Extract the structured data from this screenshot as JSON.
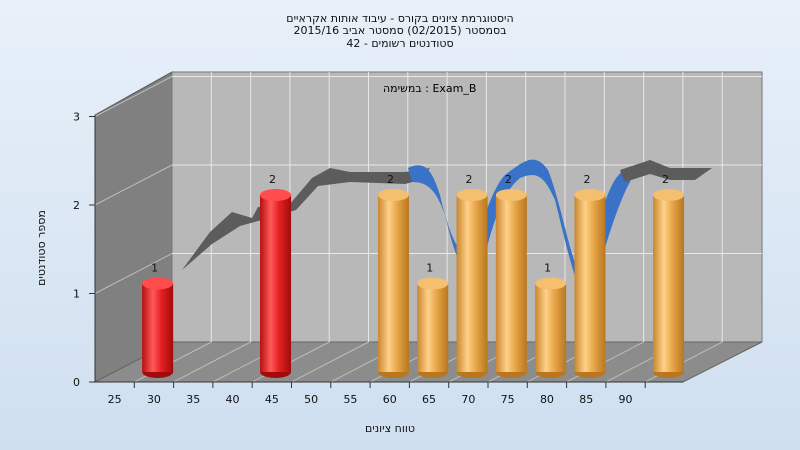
{
  "title_lines": [
    "היסטוגרמת ציונים בקורס - עיבוד אותות אקראיים",
    "בסמסטר  (02/2015)  סמסטר אביב 2015/16",
    "סטודנטים רשומים - 42"
  ],
  "chart_data": {
    "type": "bar",
    "title": "היסטוגרמת ציונים בקורס - עיבוד אותות אקראיים",
    "subtitle": "במשימה : Exam_B",
    "xlabel": "טווח ציונים",
    "ylabel": "מספר סטודנטים",
    "categories": [
      "25",
      "30",
      "35",
      "40",
      "45",
      "50",
      "55",
      "60",
      "65",
      "70",
      "75",
      "80",
      "85",
      "90"
    ],
    "values": [
      1,
      0,
      0,
      2,
      0,
      0,
      2,
      1,
      2,
      2,
      1,
      2,
      0,
      2
    ],
    "ylim": [
      0,
      3
    ],
    "yticks": [
      "0",
      "1",
      "2",
      "3"
    ],
    "bar_colors": [
      "#e01e1e",
      "#e01e1e",
      "#e01e1e",
      "#e01e1e",
      "#e8a84c",
      "#e8a84c",
      "#e8a84c",
      "#e8a84c",
      "#e8a84c",
      "#e8a84c",
      "#e8a84c",
      "#e8a84c",
      "#e8a84c",
      "#e8a84c"
    ],
    "grid": true,
    "legend": "none"
  }
}
